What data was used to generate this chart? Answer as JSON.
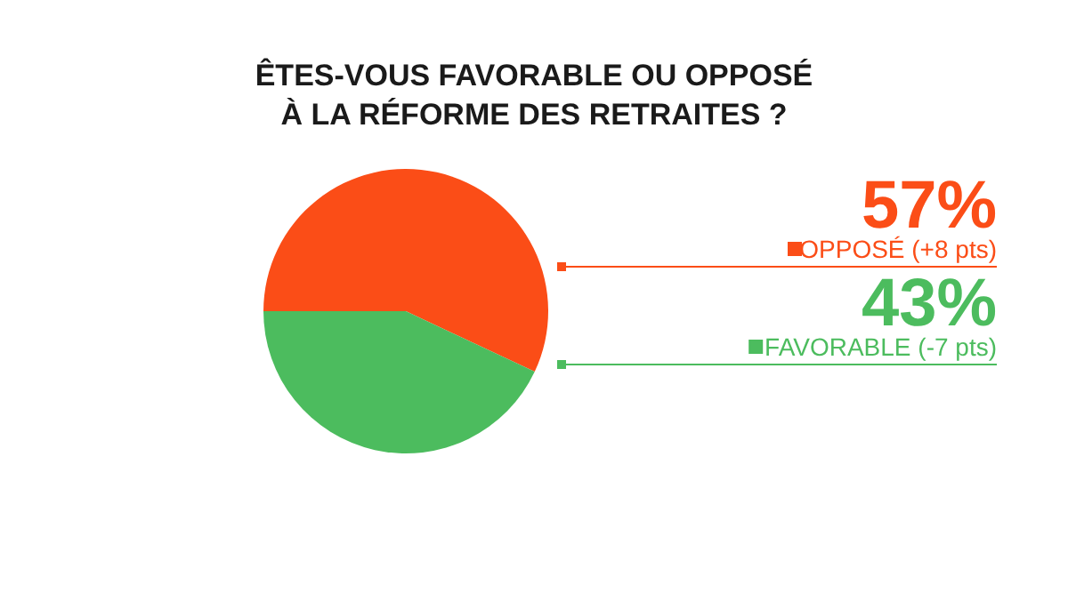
{
  "chart_data": {
    "type": "pie",
    "title": "ÊTES-VOUS FAVORABLE OU OPPOSÉ\nÀ LA RÉFORME DES RETRAITES ?",
    "categories": [
      "OPPOSÉ (+8 pts)",
      "FAVORABLE (-7 pts)"
    ],
    "values": [
      57,
      43
    ],
    "colors": [
      "#fb4d17",
      "#4cbc5e"
    ],
    "value_labels": [
      "57%",
      "43%"
    ],
    "legend": "right"
  }
}
